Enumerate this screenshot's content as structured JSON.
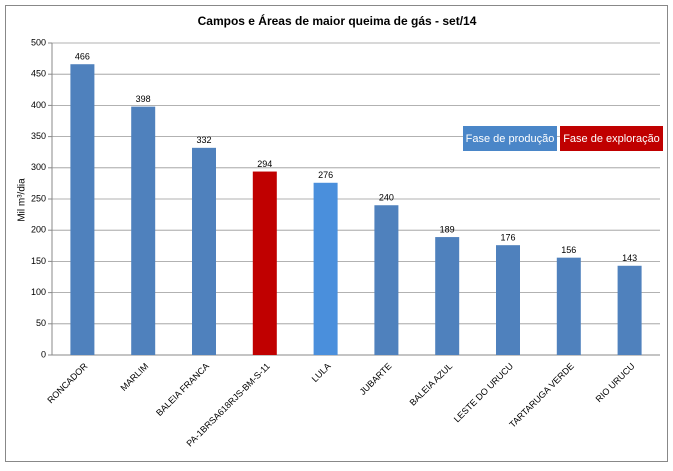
{
  "chart_data": {
    "type": "bar",
    "title": "Campos e Áreas de maior queima de gás - set/14",
    "y_label": "Mil m³/dia",
    "categories": [
      "RONCADOR",
      "MARLIM",
      "BALEIA FRANCA",
      "PA-1BRSA618RJS-BM-S-11",
      "LULA",
      "JUBARTE",
      "BALEIA AZUL",
      "LESTE DO URUCU",
      "TARTARUGA VERDE",
      "RIO URUCU"
    ],
    "values": [
      466,
      398,
      332,
      294,
      276,
      240,
      189,
      176,
      156,
      143
    ],
    "colors": [
      "#4f81bd",
      "#4f81bd",
      "#4f81bd",
      "#c00000",
      "#4a8fdc",
      "#4f81bd",
      "#4f81bd",
      "#4f81bd",
      "#4f81bd",
      "#4f81bd"
    ],
    "ylim": [
      0,
      500
    ],
    "yticks": [
      0,
      50,
      100,
      150,
      200,
      250,
      300,
      350,
      400,
      450,
      500
    ],
    "grid": true,
    "annotations": [
      {
        "text": "Fase de produção",
        "color": "#4a86c8"
      },
      {
        "text": "Fase de exploração",
        "color": "#c00000"
      }
    ]
  }
}
